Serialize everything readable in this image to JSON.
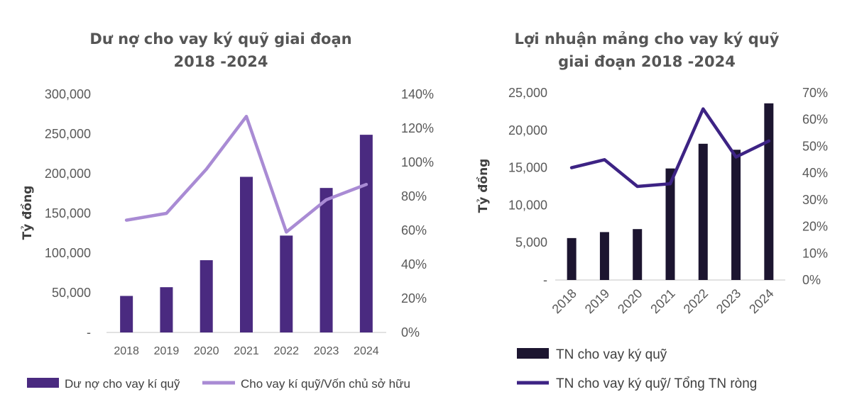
{
  "chart_data": [
    {
      "type": "bar",
      "title_lines": [
        "Dư nợ cho vay ký quỹ giai đoạn",
        "2018 -2024"
      ],
      "ylabel": "Tỷ đồng",
      "categories": [
        "2018",
        "2019",
        "2020",
        "2021",
        "2022",
        "2023",
        "2024"
      ],
      "y_ticks": [
        "-",
        "50,000",
        "100,000",
        "150,000",
        "200,000",
        "250,000",
        "300,000"
      ],
      "y2_ticks": [
        "0%",
        "20%",
        "40%",
        "60%",
        "80%",
        "100%",
        "120%",
        "140%"
      ],
      "ylim": [
        0,
        300000
      ],
      "y2lim": [
        0,
        1.4
      ],
      "series": [
        {
          "name": "Dư nợ cho vay kí quỹ",
          "kind": "bar",
          "axis": "left",
          "color": "#4a2a80",
          "values": [
            46000,
            57000,
            91000,
            196000,
            122000,
            182000,
            249000
          ]
        },
        {
          "name": "Cho vay kí quỹ/Vốn chủ sở hữu",
          "kind": "line",
          "axis": "right",
          "color": "#a98bd4",
          "values": [
            0.66,
            0.7,
            0.96,
            1.27,
            0.59,
            0.78,
            0.87
          ]
        }
      ],
      "legend_position": "bottom",
      "grid": false
    },
    {
      "type": "bar",
      "title_lines": [
        "Lợi nhuận mảng cho vay ký quỹ",
        "giai đoạn 2018 -2024"
      ],
      "ylabel": "Tỷ đồng",
      "categories": [
        "2018",
        "2019",
        "2020",
        "2021",
        "2022",
        "2023",
        "2024"
      ],
      "y_ticks": [
        "-",
        "5,000",
        "10,000",
        "15,000",
        "20,000",
        "25,000"
      ],
      "y2_ticks": [
        "0%",
        "10%",
        "20%",
        "30%",
        "40%",
        "50%",
        "60%",
        "70%"
      ],
      "ylim": [
        0,
        25000
      ],
      "y2lim": [
        0,
        0.7
      ],
      "series": [
        {
          "name": "TN cho vay ký quỹ",
          "kind": "bar",
          "axis": "left",
          "color": "#1c1530",
          "values": [
            5600,
            6400,
            6800,
            14900,
            18200,
            17400,
            23600
          ]
        },
        {
          "name": "TN cho vay ký quỹ/ Tổng TN ròng",
          "kind": "line",
          "axis": "right",
          "color": "#3d2384",
          "values": [
            0.42,
            0.45,
            0.35,
            0.36,
            0.64,
            0.46,
            0.52
          ]
        }
      ],
      "legend_position": "bottom",
      "grid": false
    }
  ]
}
